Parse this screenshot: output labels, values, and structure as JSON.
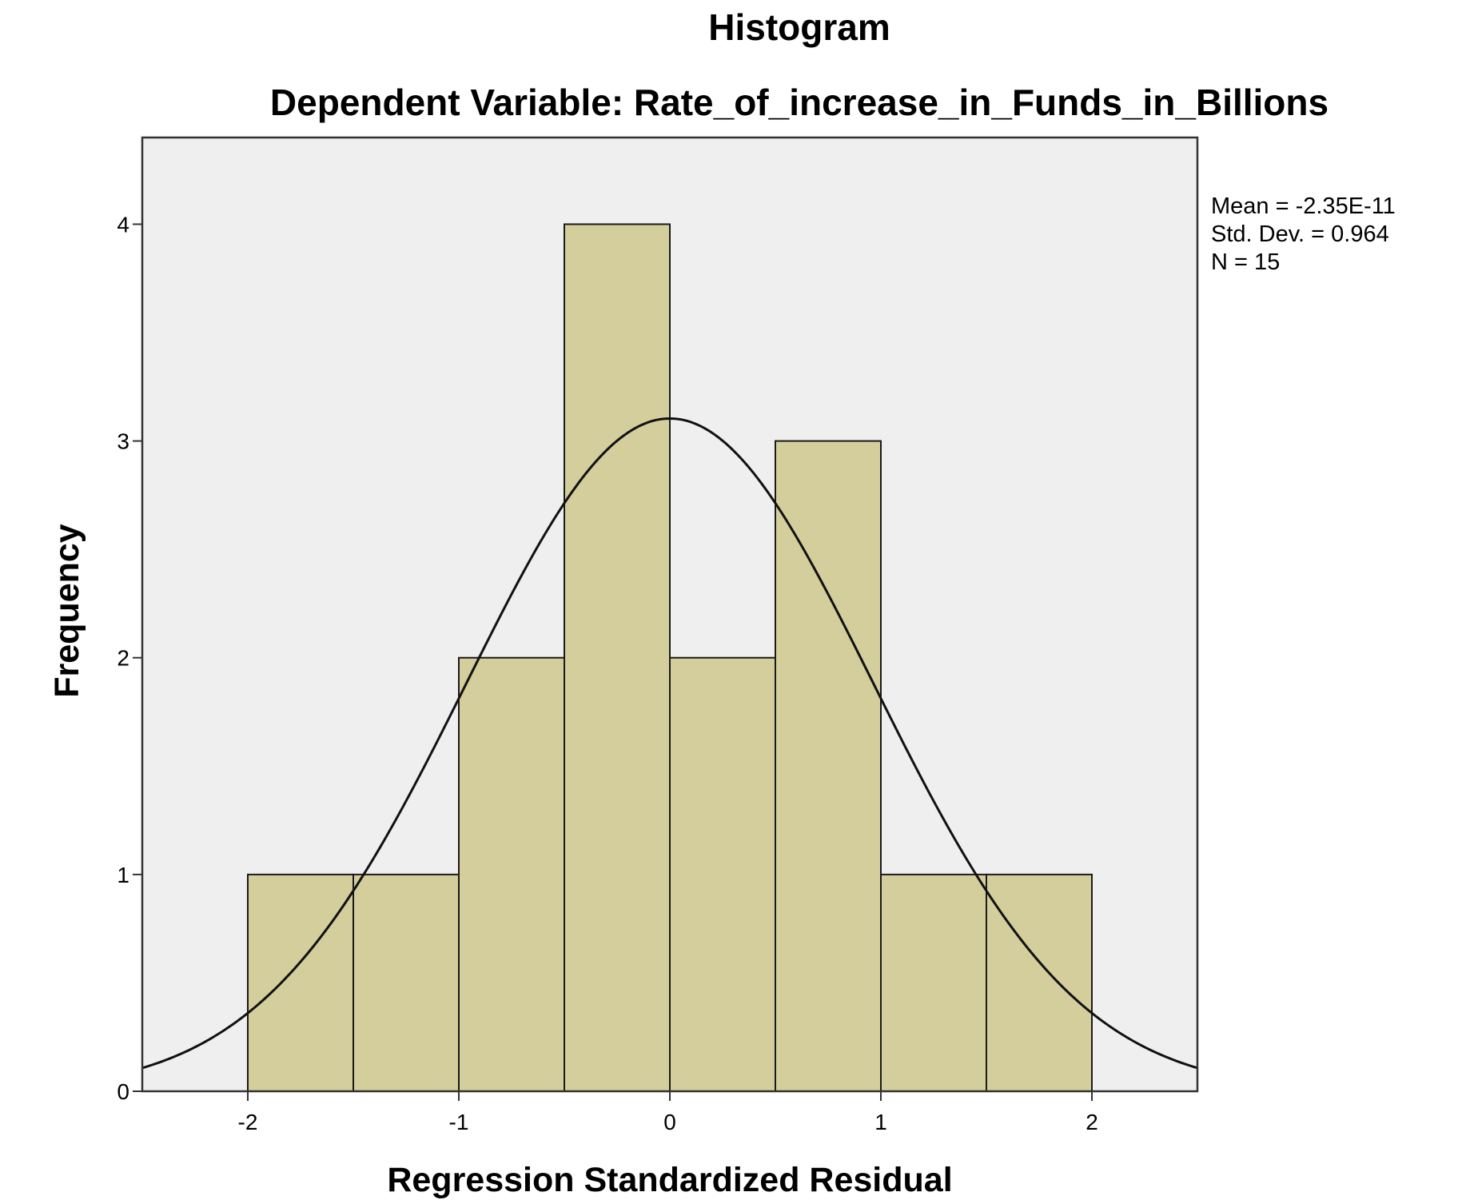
{
  "chart_data": {
    "type": "bar",
    "title": "Histogram",
    "subtitle": "Dependent Variable: Rate_of_increase_in_Funds_in_Billions",
    "xlabel": "Regression Standardized Residual",
    "ylabel": "Frequency",
    "xlim": [
      -2.5,
      2.5
    ],
    "ylim": [
      0,
      4.4
    ],
    "xticks": [
      "-2",
      "-1",
      "0",
      "1",
      "2"
    ],
    "xtick_values": [
      -2,
      -1,
      0,
      1,
      2
    ],
    "yticks": [
      "0",
      "1",
      "2",
      "3",
      "4"
    ],
    "ytick_values": [
      0,
      1,
      2,
      3,
      4
    ],
    "bins": [
      {
        "x0": -2.0,
        "x1": -1.5,
        "count": 1
      },
      {
        "x0": -1.5,
        "x1": -1.0,
        "count": 1
      },
      {
        "x0": -1.0,
        "x1": -0.5,
        "count": 2
      },
      {
        "x0": -0.5,
        "x1": 0.0,
        "count": 4
      },
      {
        "x0": 0.0,
        "x1": 0.5,
        "count": 2
      },
      {
        "x0": 0.5,
        "x1": 1.0,
        "count": 3
      },
      {
        "x0": 1.0,
        "x1": 1.5,
        "count": 1
      },
      {
        "x0": 1.5,
        "x1": 2.0,
        "count": 1
      }
    ],
    "normal_curve": {
      "mean": -2.35e-11,
      "std_dev": 0.964,
      "n": 15,
      "bin_width": 0.5
    },
    "stats_lines": [
      "Mean = -2.35E-11",
      "Std. Dev. = 0.964",
      "N = 15"
    ],
    "colors": {
      "bar_fill": "#d3ce9b",
      "bar_stroke": "#1a1a1a",
      "plot_background": "#efefef",
      "curve": "#111111"
    },
    "grid": false,
    "legend_placement": "top-right"
  }
}
